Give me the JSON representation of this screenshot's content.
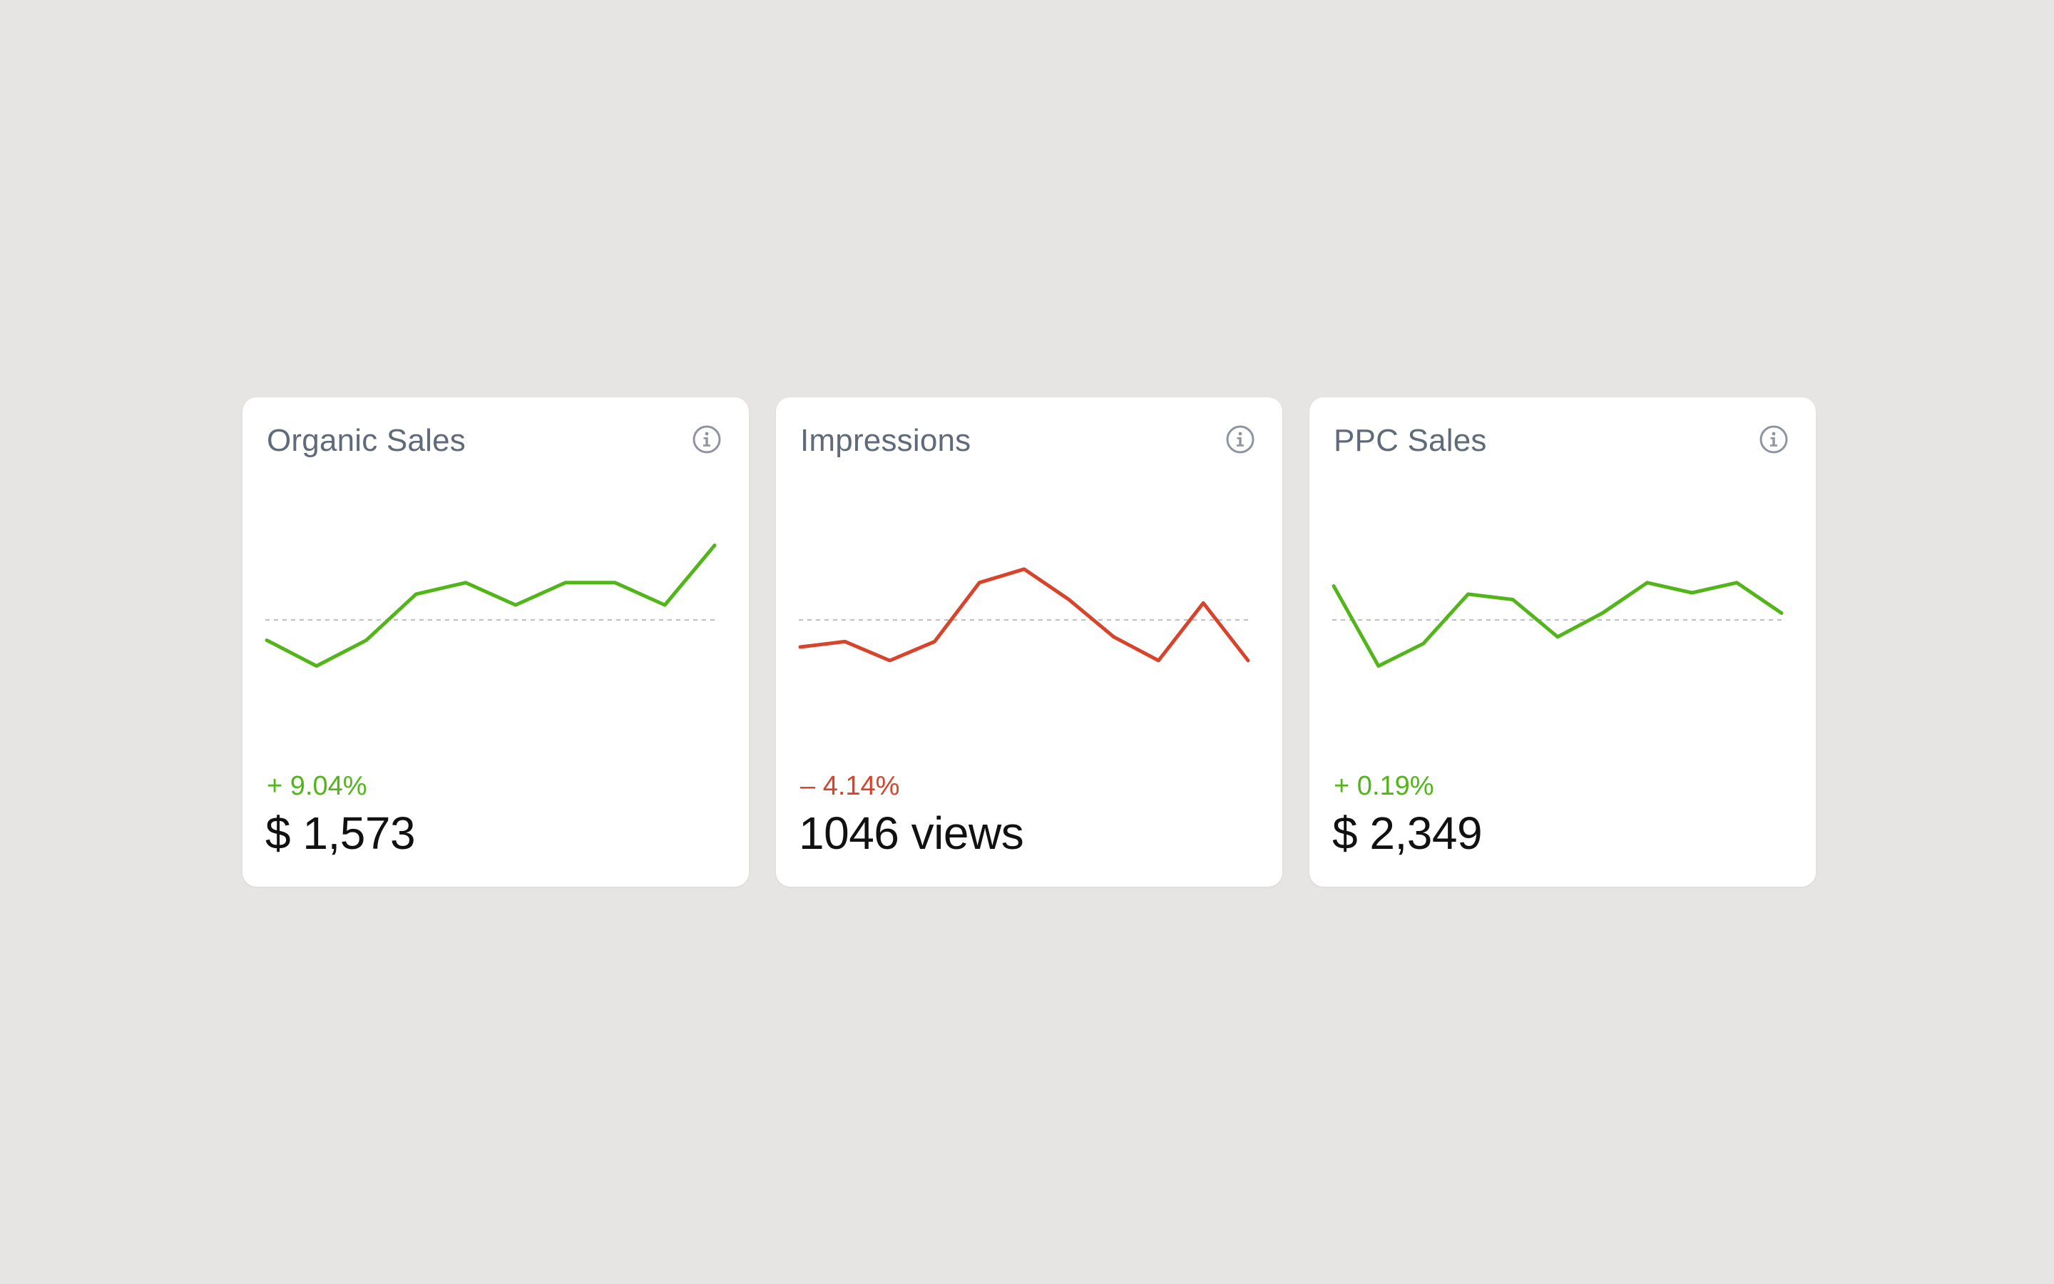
{
  "colors": {
    "positive": "#52b51a",
    "negative": "#d8432b",
    "title": "#5f6b7a",
    "baseline": "#bfbfbf"
  },
  "cards": [
    {
      "title": "Organic Sales",
      "info_icon": "info-icon",
      "trend": "positive",
      "delta": "+ 9.04%",
      "value": "$ 1,573",
      "spark": [
        -0.3,
        -0.68,
        -0.3,
        0.38,
        0.55,
        0.22,
        0.55,
        0.55,
        0.22,
        1.1
      ]
    },
    {
      "title": "Impressions",
      "info_icon": "info-icon",
      "trend": "negative",
      "delta": "– 4.14%",
      "value": "1046 views",
      "spark": [
        -0.4,
        -0.32,
        -0.6,
        -0.32,
        0.55,
        0.75,
        0.3,
        -0.25,
        -0.6,
        0.25,
        -0.6
      ]
    },
    {
      "title": "PPC Sales",
      "info_icon": "info-icon",
      "trend": "positive",
      "delta": "+ 0.19%",
      "value": "$ 2,349",
      "spark": [
        0.5,
        -0.68,
        -0.35,
        0.38,
        0.3,
        -0.25,
        0.1,
        0.55,
        0.4,
        0.55,
        0.1
      ]
    }
  ]
}
